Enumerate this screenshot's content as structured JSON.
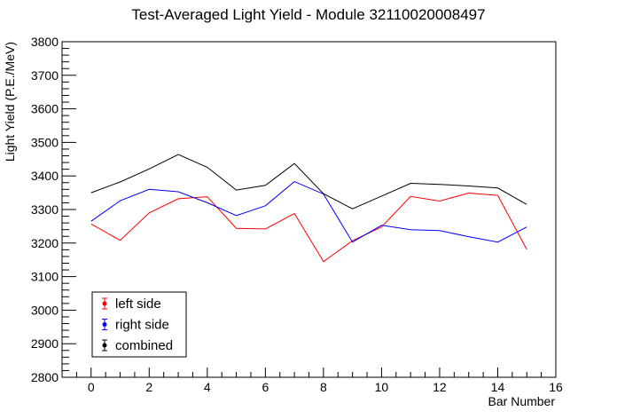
{
  "chart_data": {
    "type": "line",
    "title": "Test-Averaged Light Yield - Module 32110020008497",
    "xlabel": "Bar Number",
    "ylabel": "Light Yield (P.E./MeV)",
    "xlim": [
      -1,
      16
    ],
    "ylim": [
      2800,
      3800
    ],
    "x_ticks": [
      0,
      2,
      4,
      6,
      8,
      10,
      12,
      14,
      16
    ],
    "y_ticks": [
      2800,
      2900,
      3000,
      3100,
      3200,
      3300,
      3400,
      3500,
      3600,
      3700,
      3800
    ],
    "grid": false,
    "legend_position": "bottom-left",
    "x": [
      0,
      1,
      2,
      3,
      4,
      5,
      6,
      7,
      8,
      9,
      10,
      11,
      12,
      13,
      14,
      15
    ],
    "series": [
      {
        "name": "left side",
        "color": "#ff0000",
        "values": [
          3257,
          3208,
          3290,
          3332,
          3338,
          3244,
          3242,
          3288,
          3145,
          3207,
          3248,
          3339,
          3325,
          3349,
          3342,
          3181
        ]
      },
      {
        "name": "right side",
        "color": "#0000ff",
        "values": [
          3265,
          3326,
          3360,
          3353,
          3320,
          3282,
          3311,
          3383,
          3346,
          3203,
          3253,
          3240,
          3237,
          3219,
          3203,
          3248
        ]
      },
      {
        "name": "combined",
        "color": "#000000",
        "values": [
          3350,
          3382,
          3421,
          3464,
          3426,
          3358,
          3372,
          3437,
          3347,
          3302,
          3340,
          3378,
          3375,
          3370,
          3364,
          3315
        ]
      }
    ]
  }
}
